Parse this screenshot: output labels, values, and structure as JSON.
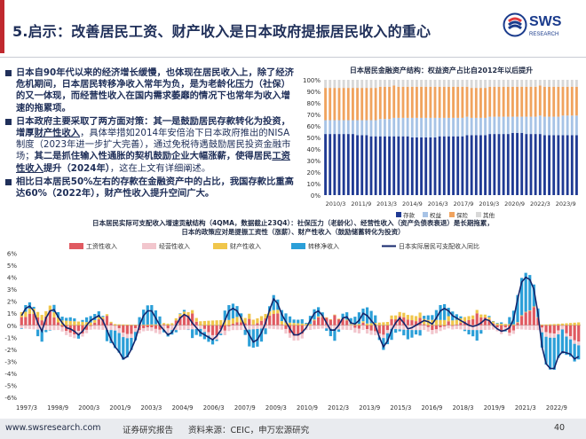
{
  "header": {
    "title": "5.启示：改善居民工资、财产收入是日本政府提振居民收入的重心",
    "logo_text": "SWS",
    "logo_sub": "RESEARCH",
    "accent": "#c0292e",
    "navy": "#20305a"
  },
  "bullets": [
    {
      "parts": [
        {
          "t": "日本自90年代以来的经济增长缓慢，也体现在居民收入上，除了经济危机期间，日本居民转移净收入常年为负，是为老龄化压力（社保）的又一体现，而经营性收入在国内需求萎靡的情况下也常年为收入增速的拖累项。",
          "s": "bold"
        }
      ]
    },
    {
      "parts": [
        {
          "t": "日本政府主要采取了两方面对策：其一是鼓励居民存款转化为投资，增厚",
          "s": "bold"
        },
        {
          "t": "财产性收入",
          "s": "ul"
        },
        {
          "t": "，具体举措如2014年安倍治下日本政府推出的NISA制度（2023年进一步扩大完善），通过免税待遇鼓励居民投资金融市场；",
          "s": ""
        },
        {
          "t": "其二是抓住输入性通胀的契机鼓励企业大幅涨薪，使得居民",
          "s": "bold"
        },
        {
          "t": "工资性收入",
          "s": "ul"
        },
        {
          "t": "提升（2024年）",
          "s": "bold"
        },
        {
          "t": "，这在上文有详细阐述。",
          "s": ""
        }
      ]
    },
    {
      "parts": [
        {
          "t": "相比日本居民50%左右的存款在金融资产中的占比，我国存款比重高达60%（2022年），财产性收入提升空间广大。",
          "s": "bold"
        }
      ]
    }
  ],
  "chart_top": {
    "title": "日本居民金融资产结构：权益资产占比自2012年以后提升",
    "type": "bar",
    "stacked": true,
    "ylim": [
      0,
      100
    ],
    "yticks": [
      "0%",
      "10%",
      "20%",
      "30%",
      "40%",
      "50%",
      "60%",
      "70%",
      "80%",
      "90%",
      "100%"
    ],
    "xticks": [
      "2010/3",
      "2011/9",
      "2013/3",
      "2014/9",
      "2016/3",
      "2017/9",
      "2019/3",
      "2020/9",
      "2022/3",
      "2023/9"
    ],
    "legend": [
      {
        "name": "存款",
        "color": "#1f3a93"
      },
      {
        "name": "权益",
        "color": "#a7c3e6"
      },
      {
        "name": "保险",
        "color": "#f0a35e"
      },
      {
        "name": "其他",
        "color": "#d8d8d8"
      }
    ],
    "series_profile": {
      "deposit": [
        53,
        53,
        53,
        53,
        53,
        53,
        53,
        52,
        52,
        52,
        51,
        51,
        51,
        51,
        51,
        51,
        51,
        51,
        51,
        50,
        50,
        50,
        50,
        50,
        50,
        51,
        51,
        51,
        51,
        51,
        51,
        52,
        52,
        52,
        52,
        52,
        53,
        53,
        53,
        53,
        53,
        54,
        54,
        54,
        53,
        53,
        53,
        53,
        52,
        52,
        52,
        52,
        52,
        52,
        52,
        52
      ],
      "equity": [
        12,
        12,
        12,
        12,
        12,
        12,
        12,
        13,
        13,
        13,
        14,
        14,
        15,
        15,
        15,
        16,
        16,
        16,
        16,
        17,
        17,
        17,
        17,
        17,
        17,
        16,
        16,
        16,
        16,
        16,
        16,
        16,
        15,
        15,
        15,
        15,
        15,
        15,
        15,
        15,
        15,
        14,
        14,
        14,
        15,
        15,
        15,
        16,
        16,
        16,
        16,
        16,
        17,
        17,
        17,
        17
      ],
      "insurance": [
        28,
        28,
        28,
        28,
        28,
        28,
        28,
        28,
        28,
        28,
        28,
        28,
        28,
        28,
        28,
        28,
        27,
        27,
        27,
        27,
        27,
        27,
        27,
        27,
        27,
        27,
        27,
        27,
        27,
        27,
        27,
        26,
        26,
        26,
        26,
        26,
        26,
        26,
        26,
        26,
        26,
        26,
        26,
        26,
        26,
        26,
        26,
        26,
        26,
        26,
        26,
        26,
        25,
        25,
        25,
        25
      ]
    }
  },
  "chart_bottom": {
    "title_line1": "日本居民实际可支配收入增速贡献结构（4QMA，数据截止23Q4）：社保压力（老龄化）、经营性收入（资产负债表衰退）是长期拖累，",
    "title_line2": "日本的政策应对是提振工资性（涨薪）、财产性收入（鼓励储蓄转化为投资）",
    "type": "bar+line",
    "ylim": [
      -6,
      7
    ],
    "yticks": [
      "-6%",
      "-5%",
      "-4%",
      "-3%",
      "-2%",
      "-1%",
      "0%",
      "1%",
      "2%",
      "3%",
      "4%",
      "5%",
      "6%"
    ],
    "xticks": [
      "1997/3",
      "1998/9",
      "2000/3",
      "2001/9",
      "2003/3",
      "2004/9",
      "2006/3",
      "2007/9",
      "2009/3",
      "2010/9",
      "2012/3",
      "2013/9",
      "2015/3",
      "2016/9",
      "2018/3",
      "2019/9",
      "2021/3",
      "2022/9"
    ],
    "legend": [
      {
        "name": "工资性收入",
        "color": "#e05a61"
      },
      {
        "name": "经营性收入",
        "color": "#f2c6cd"
      },
      {
        "name": "财产性收入",
        "color": "#f0c64b"
      },
      {
        "name": "转移净收入",
        "color": "#2b9fd8"
      },
      {
        "name": "日本实际居民可支配收入同比",
        "color": "#13256b"
      }
    ],
    "line_series": [
      0.8,
      1.4,
      1.6,
      1.2,
      0.2,
      -0.5,
      0.6,
      1.2,
      1.3,
      0.7,
      0.2,
      -0.2,
      -0.3,
      -0.5,
      -0.8,
      -0.5,
      0,
      0.4,
      0.6,
      0.8,
      0.4,
      -0.4,
      -1.2,
      -1.8,
      -2.2,
      -2.8,
      -2.6,
      -2,
      -1.2,
      0,
      0.8,
      1.2,
      1.2,
      0.6,
      0,
      -0.4,
      -0.8,
      -0.6,
      0,
      0.6,
      0.9,
      0.7,
      0.2,
      -0.2,
      -0.6,
      -0.8,
      -1,
      -1.2,
      -0.9,
      -0.4,
      0.4,
      1.2,
      1.4,
      1.2,
      0.6,
      -0.2,
      -0.8,
      -1.4,
      -1.2,
      -0.6,
      0.2,
      1.3,
      2.2,
      1.8,
      0.9,
      0.3,
      -0.3,
      -0.8,
      -0.8,
      -0.6,
      -0.2,
      0.4,
      1,
      1.2,
      0.8,
      0.2,
      -0.4,
      -0.4,
      0,
      0.6,
      0.7,
      0.2,
      0.1,
      0.4,
      1,
      0.8,
      0.4,
      0,
      -1,
      -1.8,
      -1.3,
      -0.4,
      0.2,
      0.6,
      0.2,
      -0.3,
      -0.2,
      0,
      0.2,
      0.4,
      0.3,
      0.1,
      0.6,
      1.2,
      1.4,
      1.2,
      0.8,
      0.6,
      0.4,
      0.2,
      0,
      -0.1,
      0,
      0.2,
      0.5,
      0.4,
      0,
      -0.3,
      -0.5,
      -0.4,
      -0.2,
      0.5,
      2.2,
      3.6,
      4,
      3.8,
      3,
      1,
      -1.8,
      -3.2,
      -3.6,
      -3.6,
      -2.6,
      -2.2,
      -2.3,
      -2.4,
      -2.8,
      -2.6
    ]
  },
  "footer": {
    "url": "www.swsresearch.com",
    "label1": "证券研究报告",
    "source": "资料来源：CEIC，申万宏源研究",
    "page": "40"
  }
}
